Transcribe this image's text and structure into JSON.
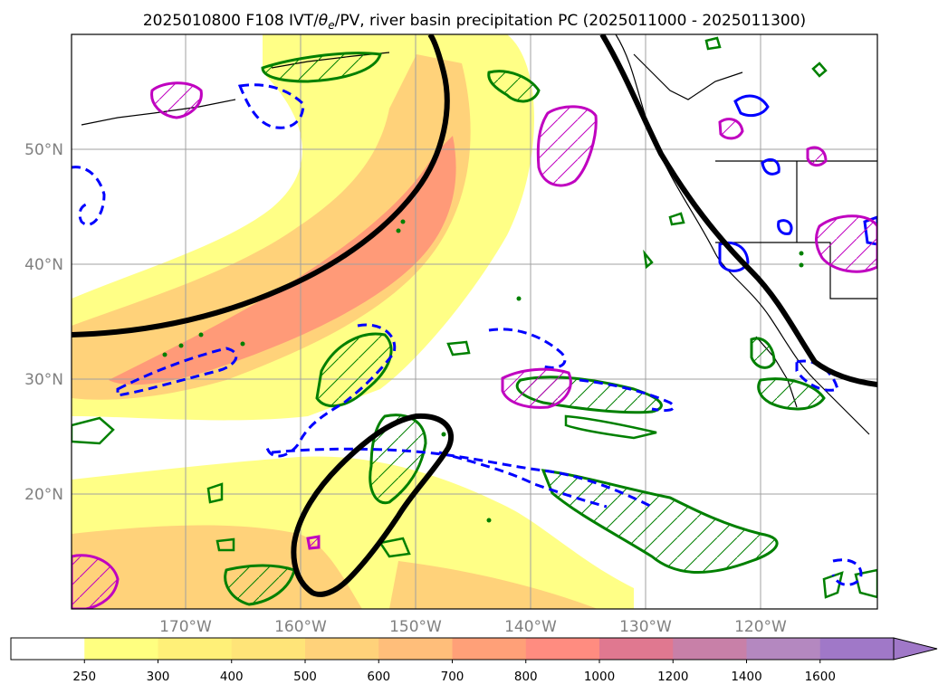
{
  "title": {
    "prefix": "2025010800 F108 IVT/",
    "theta": "θ",
    "theta_sub": "e",
    "suffix": "/PV, river basin precipitation PC (2025011000 - 2025011300)"
  },
  "map": {
    "lat_labels": [
      "50°N",
      "40°N",
      "30°N",
      "20°N"
    ],
    "lon_labels": [
      "170°W",
      "160°W",
      "150°W",
      "140°W",
      "130°W",
      "120°W"
    ],
    "colors": {
      "ivt_low": "#ffff80",
      "ivt_mid": "#ffd27a",
      "ivt_high": "#ff9a78",
      "pv_contour": "#000000",
      "pos_anomaly": "#008000",
      "neg_anomaly": "#0000ff",
      "precip_region": "#c000c0"
    }
  },
  "colorbar": {
    "extend": "max",
    "labels": [
      "250",
      "300",
      "400",
      "500",
      "600",
      "700",
      "800",
      "1000",
      "1200",
      "1400",
      "1600"
    ],
    "colors": [
      "#ffffff",
      "#ffff80",
      "#fff078",
      "#ffe478",
      "#ffd27a",
      "#ffbe7a",
      "#ffa078",
      "#ff8c80",
      "#e07890",
      "#c880a8",
      "#b488c0",
      "#a078c8"
    ]
  }
}
